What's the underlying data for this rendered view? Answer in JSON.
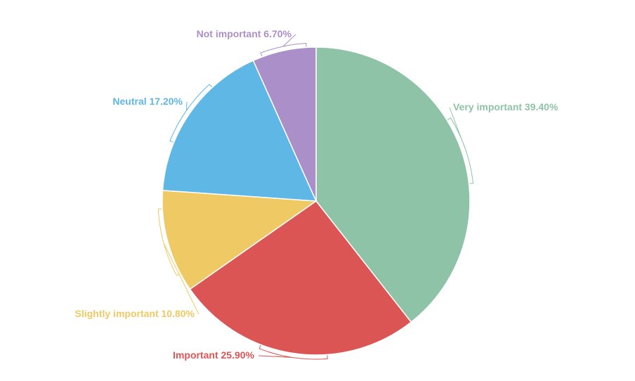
{
  "chart_data": {
    "type": "pie",
    "title": "",
    "slices": [
      {
        "label": "Very important",
        "value": 39.4,
        "display": "39.40%",
        "color": "#8fc3a8"
      },
      {
        "label": "Important",
        "value": 25.9,
        "display": "25.90%",
        "color": "#dc5555"
      },
      {
        "label": "Slightly important",
        "value": 10.8,
        "display": "10.80%",
        "color": "#efc964"
      },
      {
        "label": "Neutral",
        "value": 17.2,
        "display": "17.20%",
        "color": "#5eb7e5"
      },
      {
        "label": "Not important",
        "value": 6.7,
        "display": "6.70%",
        "color": "#ab8fc9"
      }
    ],
    "start_angle": "12 o'clock",
    "direction": "clockwise"
  }
}
